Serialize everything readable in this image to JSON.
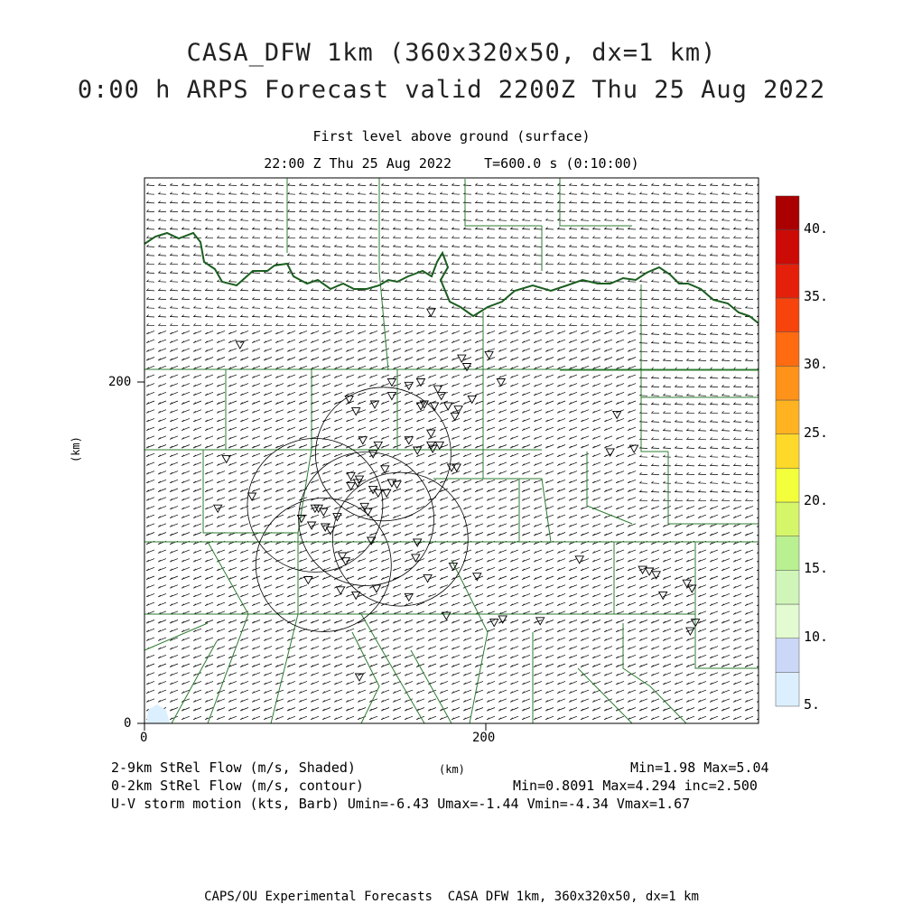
{
  "header": {
    "title_line1": "CASA_DFW 1km (360x320x50, dx=1 km)",
    "title_line2": "0:00 h ARPS Forecast valid 2200Z Thu 25 Aug 2022",
    "subtitle_line1": "First level above ground (surface)",
    "subtitle_line2": "22:00 Z Thu 25 Aug 2022    T=600.0 s (0:10:00)"
  },
  "chart_data": {
    "type": "heatmap",
    "x_axis": {
      "label": "(km)",
      "range": [
        0,
        360
      ],
      "ticks": [
        "0",
        "200"
      ]
    },
    "y_axis": {
      "label": "(km)",
      "range": [
        0,
        320
      ],
      "ticks": [
        "0",
        "200"
      ]
    },
    "colorbar": {
      "labels": [
        "5.",
        "10.",
        "15.",
        "20.",
        "25.",
        "30.",
        "35.",
        "40."
      ],
      "levels": [
        5,
        7.5,
        10,
        12.5,
        15,
        17.5,
        20,
        22.5,
        25,
        27.5,
        30,
        32.5,
        35,
        37.5,
        40
      ],
      "colors": [
        "#dcefff",
        "#cbd7f7",
        "#e2fbd0",
        "#cff5b9",
        "#b9f091",
        "#d6f66a",
        "#f3ff3a",
        "#ffd92a",
        "#ffb321",
        "#ff9219",
        "#ff6b10",
        "#f6440c",
        "#e5200a",
        "#cc0a06",
        "#aa0000"
      ]
    },
    "contour_rings": [
      {
        "x": 140,
        "y": 158
      },
      {
        "x": 100,
        "y": 128
      },
      {
        "x": 130,
        "y": 120
      },
      {
        "x": 105,
        "y": 93
      },
      {
        "x": 150,
        "y": 108
      }
    ],
    "markers": [
      [
        56,
        222
      ],
      [
        168,
        241
      ],
      [
        186,
        214
      ],
      [
        189,
        209
      ],
      [
        155,
        198
      ],
      [
        145,
        192
      ],
      [
        192,
        190
      ],
      [
        172,
        196
      ],
      [
        174,
        192
      ],
      [
        178,
        186
      ],
      [
        184,
        184
      ],
      [
        170,
        186
      ],
      [
        182,
        180
      ],
      [
        164,
        187
      ],
      [
        162,
        186
      ],
      [
        124,
        183
      ],
      [
        120,
        190
      ],
      [
        168,
        163
      ],
      [
        173,
        163
      ],
      [
        168,
        170
      ],
      [
        155,
        166
      ],
      [
        128,
        166
      ],
      [
        137,
        163
      ],
      [
        134,
        158
      ],
      [
        121,
        145
      ],
      [
        126,
        143
      ],
      [
        141,
        149
      ],
      [
        145,
        141
      ],
      [
        148,
        140
      ],
      [
        137,
        135
      ],
      [
        134,
        137
      ],
      [
        142,
        135
      ],
      [
        129,
        127
      ],
      [
        131,
        124
      ],
      [
        113,
        121
      ],
      [
        102,
        126
      ],
      [
        98,
        116
      ],
      [
        109,
        113
      ],
      [
        43,
        126
      ],
      [
        133,
        107
      ],
      [
        160,
        106
      ],
      [
        159,
        97
      ],
      [
        116,
        98
      ],
      [
        92,
        120
      ],
      [
        96,
        84
      ],
      [
        115,
        78
      ],
      [
        124,
        75
      ],
      [
        136,
        79
      ],
      [
        155,
        74
      ],
      [
        181,
        92
      ],
      [
        166,
        85
      ],
      [
        195,
        86
      ],
      [
        255,
        96
      ],
      [
        287,
        161
      ],
      [
        277,
        181
      ],
      [
        209,
        200
      ],
      [
        202,
        216
      ],
      [
        273,
        159
      ],
      [
        296,
        89
      ],
      [
        292,
        90
      ],
      [
        300,
        87
      ],
      [
        304,
        75
      ],
      [
        318,
        82
      ],
      [
        321,
        79
      ],
      [
        323,
        59
      ],
      [
        205,
        59
      ],
      [
        210,
        61
      ],
      [
        232,
        60
      ],
      [
        177,
        63
      ],
      [
        126,
        27
      ],
      [
        320,
        54
      ],
      [
        48,
        155
      ],
      [
        63,
        133
      ],
      [
        100,
        126
      ],
      [
        105,
        124
      ],
      [
        121,
        139
      ],
      [
        125,
        141
      ],
      [
        160,
        160
      ],
      [
        169,
        161
      ],
      [
        183,
        150
      ],
      [
        180,
        150
      ],
      [
        118,
        95
      ],
      [
        106,
        115
      ],
      [
        135,
        187
      ],
      [
        145,
        200
      ],
      [
        162,
        200
      ]
    ],
    "stats": {
      "shaded": "2-9km StRel Flow (m/s, Shaded)",
      "shaded_min": 1.98,
      "shaded_max": 5.04,
      "contour": "0-2km StRel Flow (m/s, contour)",
      "contour_min": 0.8091,
      "contour_max": 4.294,
      "contour_inc": 2.5,
      "barb": "U-V storm motion (kts, Barb)",
      "umin": -6.43,
      "umax": -1.44,
      "vmin": -4.34,
      "vmax": 1.67
    }
  },
  "axes": {
    "y_tick_0": "0",
    "y_tick_200": "200",
    "x_tick_0": "0",
    "x_tick_200": "200",
    "y_label": "(km)",
    "x_label": "(km)"
  },
  "footer": {
    "left1": "2-9km StRel Flow (m/s, Shaded)",
    "right1": "Min=1.98 Max=5.04",
    "left2": "0-2km StRel Flow (m/s, contour)",
    "right2": "Min=0.8091 Max=4.294 inc=2.500",
    "line3": "U-V storm motion (kts, Barb) Umin=-6.43 Umax=-1.44 Vmin=-4.34 Vmax=1.67",
    "credit": "CAPS/OU Experimental Forecasts  CASA DFW 1km, 360x320x50, dx=1 km"
  },
  "colors": {
    "county_lines": "#2e7d32",
    "red_river": "#1b5e20",
    "barbs": "#000000",
    "contours": "#000000"
  }
}
